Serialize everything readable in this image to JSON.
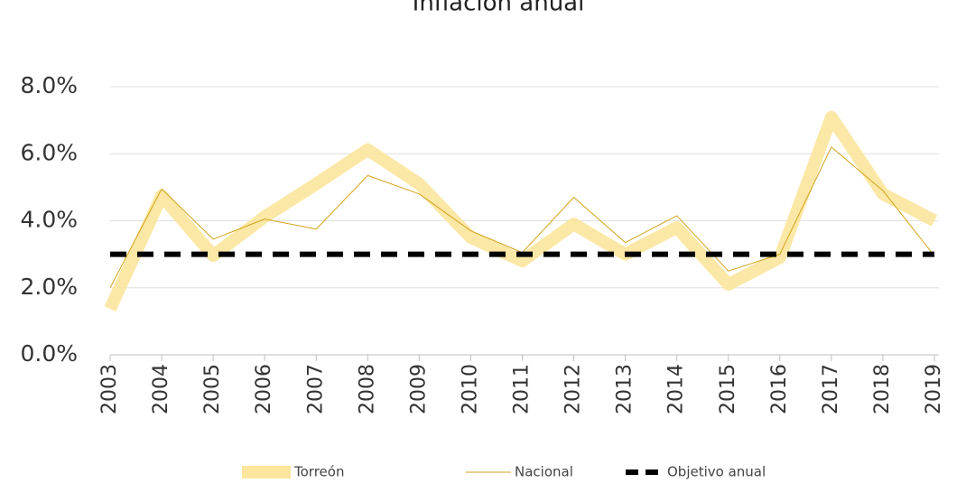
{
  "chart_data": {
    "type": "line",
    "title": "Inflación anual",
    "categories": [
      "2003",
      "2004",
      "2005",
      "2006",
      "2007",
      "2008",
      "2009",
      "2010",
      "2011",
      "2012",
      "2013",
      "2014",
      "2015",
      "2016",
      "2017",
      "2018",
      "2019"
    ],
    "series": [
      {
        "name": "Torreón",
        "color": "#fce59c",
        "values": [
          1.37,
          4.75,
          2.96,
          4.12,
          5.1,
          6.12,
          5.1,
          3.5,
          2.8,
          3.9,
          3.0,
          3.8,
          2.1,
          2.9,
          7.09,
          4.8,
          4.0
        ]
      },
      {
        "name": "Nacional",
        "color": "#d4a21c",
        "values": [
          2.0,
          4.95,
          3.45,
          4.05,
          3.75,
          5.35,
          4.8,
          3.7,
          3.05,
          4.7,
          3.35,
          4.15,
          2.5,
          3.0,
          6.2,
          4.9,
          2.95
        ]
      },
      {
        "name": "Objetivo anual",
        "color": "#000000",
        "dashed": true,
        "values": [
          3.0,
          3.0,
          3.0,
          3.0,
          3.0,
          3.0,
          3.0,
          3.0,
          3.0,
          3.0,
          3.0,
          3.0,
          3.0,
          3.0,
          3.0,
          3.0,
          3.0
        ]
      }
    ],
    "ylim": [
      0,
      8
    ],
    "yticks": [
      {
        "value": 0,
        "label": "0.0%"
      },
      {
        "value": 2,
        "label": "2.0%"
      },
      {
        "value": 4,
        "label": "4.0%"
      },
      {
        "value": 6,
        "label": "6.0%"
      },
      {
        "value": 8,
        "label": "8.0%"
      }
    ],
    "grid": true,
    "legend": "bottom"
  }
}
